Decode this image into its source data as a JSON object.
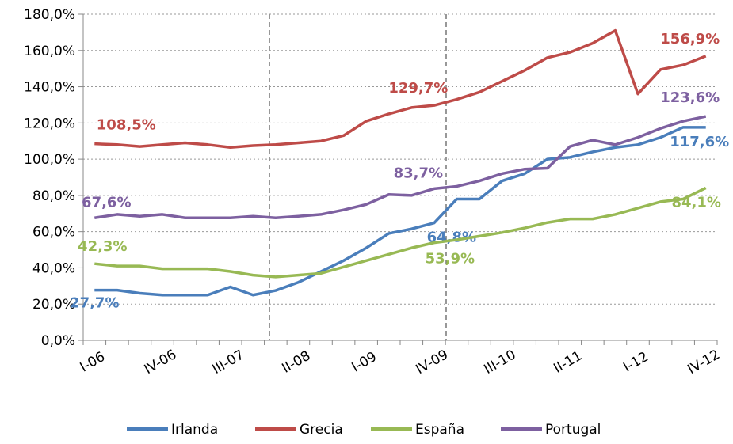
{
  "chart_data": {
    "type": "line",
    "categories": [
      "I-06",
      null,
      null,
      "IV-06",
      null,
      null,
      "III-07",
      null,
      null,
      "II-08",
      null,
      null,
      "I-09",
      null,
      null,
      "IV-09",
      null,
      null,
      "III-10",
      null,
      null,
      "II-11",
      null,
      null,
      "I-12",
      null,
      null,
      "IV-12"
    ],
    "series": [
      {
        "name": "Irlanda",
        "color": "#4a7ebb",
        "values": [
          27.7,
          27.7,
          26,
          25,
          25,
          25,
          29.5,
          25,
          27.5,
          32,
          38,
          44,
          51,
          59,
          61.5,
          64.8,
          78,
          78,
          88,
          92,
          100,
          101,
          104,
          106.5,
          108,
          112,
          117.6,
          117.6
        ],
        "value_labels": [
          "27,7%",
          null,
          null,
          null,
          null,
          null,
          null,
          null,
          null,
          null,
          null,
          null,
          null,
          null,
          null,
          "64,8%",
          null,
          null,
          null,
          null,
          null,
          null,
          null,
          null,
          null,
          null,
          null,
          "117,6%"
        ]
      },
      {
        "name": "Grecia",
        "color": "#be4b48",
        "values": [
          108.5,
          108,
          107,
          108,
          109,
          108,
          106.5,
          107.5,
          108,
          109,
          110,
          113,
          121,
          125,
          128.5,
          129.7,
          133,
          137,
          143,
          149,
          156,
          159,
          164,
          171,
          136,
          149.5,
          152,
          156.9
        ],
        "value_labels": [
          "108,5%",
          null,
          null,
          null,
          null,
          null,
          null,
          null,
          null,
          null,
          null,
          null,
          null,
          null,
          null,
          "129,7%",
          null,
          null,
          null,
          null,
          null,
          null,
          null,
          null,
          null,
          null,
          null,
          "156,9%"
        ]
      },
      {
        "name": "España",
        "color": "#98b954",
        "values": [
          42.3,
          41,
          41,
          39.5,
          39.5,
          39.5,
          38,
          36,
          35,
          36,
          37,
          40.5,
          44,
          47.5,
          51,
          53.9,
          55.5,
          57.5,
          59.5,
          62,
          65,
          67,
          67,
          69.5,
          73,
          76.5,
          78,
          84.1
        ],
        "value_labels": [
          "42,3%",
          null,
          null,
          null,
          null,
          null,
          null,
          null,
          null,
          null,
          null,
          null,
          null,
          null,
          null,
          "53,9%",
          null,
          null,
          null,
          null,
          null,
          null,
          null,
          null,
          null,
          null,
          null,
          "84,1%"
        ]
      },
      {
        "name": "Portugal",
        "color": "#7d60a0",
        "values": [
          67.6,
          69.5,
          68.5,
          69.5,
          67.6,
          67.6,
          67.6,
          68.5,
          67.6,
          68.5,
          69.5,
          72,
          75,
          80.5,
          80,
          83.7,
          85,
          88,
          92,
          94.5,
          95,
          107,
          110.5,
          108,
          112,
          117,
          121,
          123.6
        ],
        "value_labels": [
          "67,6%",
          null,
          null,
          null,
          null,
          null,
          null,
          null,
          null,
          null,
          null,
          null,
          null,
          null,
          null,
          "83,7%",
          null,
          null,
          null,
          null,
          null,
          null,
          null,
          null,
          null,
          null,
          null,
          "123,6%"
        ]
      }
    ],
    "ylim": [
      0,
      180
    ],
    "yticks": [
      {
        "value": 0,
        "label": "0,0%"
      },
      {
        "value": 20,
        "label": "20,0%"
      },
      {
        "value": 40,
        "label": "40,0%"
      },
      {
        "value": 60,
        "label": "60,0%"
      },
      {
        "value": 80,
        "label": "80,0%"
      },
      {
        "value": 100,
        "label": "100,0%"
      },
      {
        "value": 120,
        "label": "120,0%"
      },
      {
        "value": 140,
        "label": "140,0%"
      },
      {
        "value": 160,
        "label": "160,0%"
      },
      {
        "value": 180,
        "label": "180,0%"
      }
    ],
    "grid": true,
    "legend": "bottom"
  }
}
